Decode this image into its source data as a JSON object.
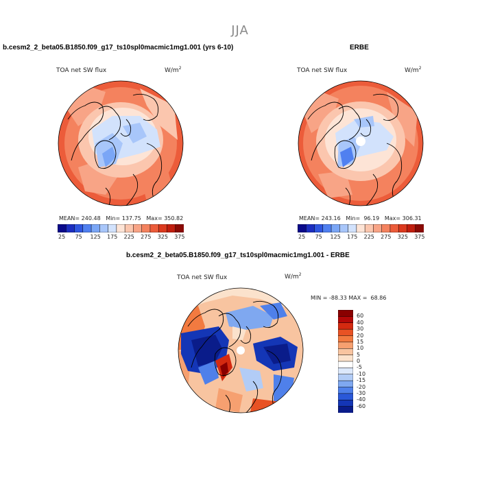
{
  "figure": {
    "season": "JJA"
  },
  "panels": [
    {
      "title": "b.cesm2_2_beta05.B1850.f09_g17_ts10spl0macmic1mg1.001 (yrs 6-10)",
      "variable": "TOA net SW flux",
      "units_base": "W/m",
      "units_exp": "2",
      "stats": {
        "mean_label": "MEAN=",
        "mean": "240.48",
        "min_label": "Min=",
        "min": "137.75",
        "max_label": "Max=",
        "max": "350.82"
      }
    },
    {
      "title": "ERBE",
      "variable": "TOA net SW flux",
      "units_base": "W/m",
      "units_exp": "2",
      "stats": {
        "mean_label": "MEAN=",
        "mean": "243.16",
        "min_label": "Min=",
        "min": "96.19",
        "max_label": "Max=",
        "max": "306.31"
      }
    },
    {
      "title": "b.cesm2_2_beta05.B1850.f09_g17_ts10spl0macmic1mg1.001 - ERBE",
      "variable": "TOA net SW flux",
      "units_base": "W/m",
      "units_exp": "2",
      "stats_line": "MIN = -88.33 MAX =  68.86"
    }
  ],
  "colorbar_abs": {
    "colors": [
      "#0a0a8a",
      "#1c2ec0",
      "#2f56e0",
      "#5080f0",
      "#7aa6f6",
      "#a8c6fa",
      "#d2e2fc",
      "#fde4d6",
      "#fbc6ae",
      "#f8a486",
      "#f4825e",
      "#ec5c3a",
      "#dc3a1e",
      "#c01e0e",
      "#8a0a04"
    ],
    "tick_labels": [
      "25",
      "75",
      "125",
      "175",
      "225",
      "275",
      "325",
      "375"
    ]
  },
  "colorbar_diff": {
    "colors": [
      "#8a0000",
      "#b40808",
      "#d42a10",
      "#e85224",
      "#f27a40",
      "#f6a070",
      "#f8c4a0",
      "#fbe2cc",
      "#ffffff",
      "#dce8fb",
      "#b2ccf6",
      "#7fa8f0",
      "#4f80ea",
      "#2a58d8",
      "#1436b6",
      "#0a1c8a"
    ],
    "tick_labels": [
      "60",
      "40",
      "30",
      "20",
      "15",
      "10",
      "5",
      "0",
      "-5",
      "-10",
      "-15",
      "-20",
      "-30",
      "-40",
      "-60"
    ]
  }
}
